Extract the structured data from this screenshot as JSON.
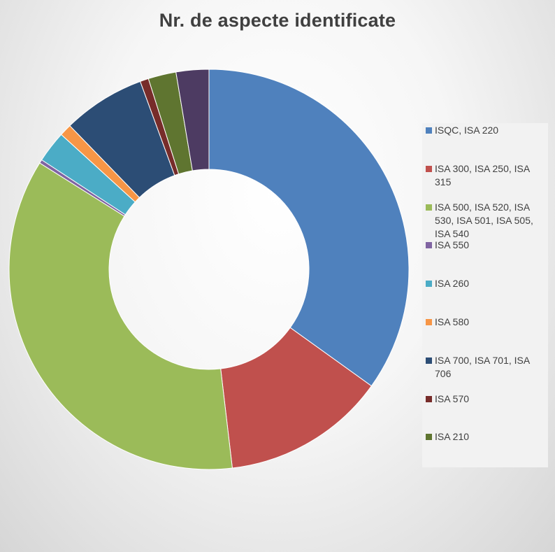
{
  "chart_data": {
    "type": "pie",
    "variant": "doughnut",
    "title": "Nr. de aspecte identificate",
    "legend_position": "right",
    "slices": [
      {
        "label": "ISQC, ISA 220",
        "value": 35.6,
        "color": "#4F81BD"
      },
      {
        "label": "ISA 300, ISA 250, ISA 315",
        "value": 13.5,
        "color": "#C0504D"
      },
      {
        "label": "ISA 500, ISA 520, ISA 530, ISA 501, ISA 505, ISA 540",
        "value": 36.5,
        "color": "#9BBB59"
      },
      {
        "label": "ISA 550",
        "value": 0.3,
        "color": "#8064A2"
      },
      {
        "label": "ISA 260",
        "value": 2.6,
        "color": "#4BACC6"
      },
      {
        "label": "ISA 580",
        "value": 1.0,
        "color": "#F79646"
      },
      {
        "label": "ISA 700, ISA 701, ISA 706",
        "value": 6.8,
        "color": "#2C4D75"
      },
      {
        "label": "ISA 570",
        "value": 0.7,
        "color": "#772C2A"
      },
      {
        "label": "ISA 210",
        "value": 2.3,
        "color": "#5F7530"
      },
      {
        "label": "",
        "value": 2.7,
        "color": "#4D3B62"
      }
    ]
  }
}
